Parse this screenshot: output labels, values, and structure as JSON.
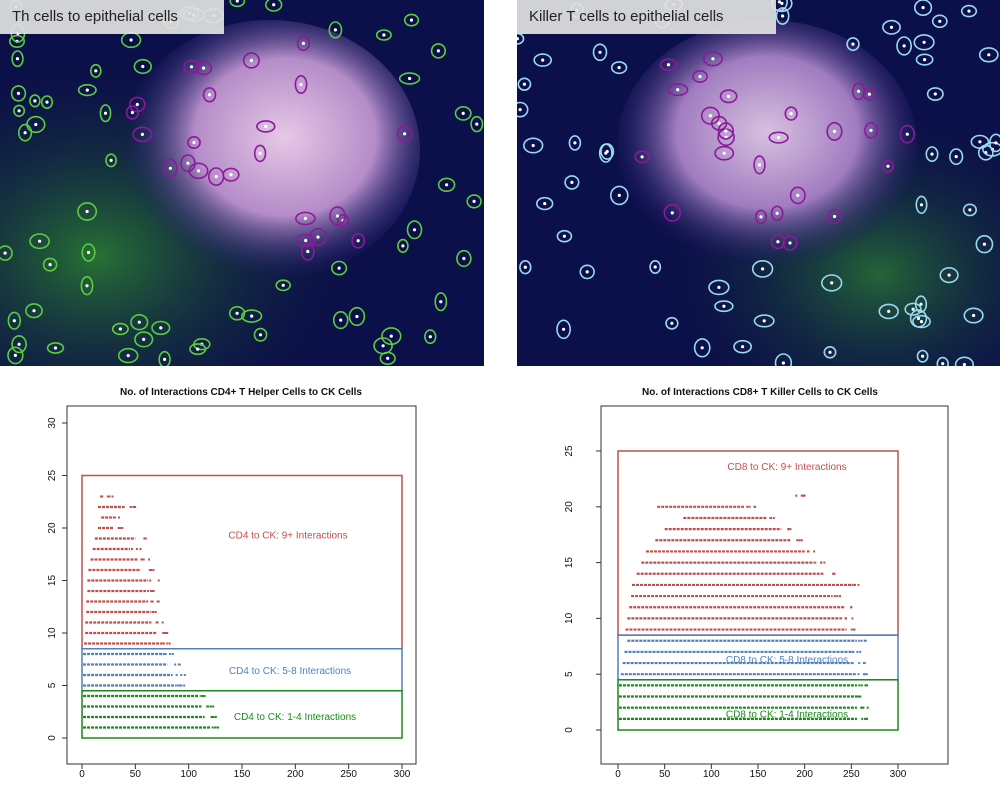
{
  "images": {
    "left_caption": "Th cells to epithelial cells",
    "right_caption": "Killer T cells to epithelial cells"
  },
  "colors": {
    "high": "#c0504d",
    "mid": "#4f81bd",
    "low": "#1a8a1a"
  },
  "chart_data": [
    {
      "type": "scatter",
      "title": "No. of Interactions CD4+ T Helper Cells to CK Cells",
      "xlabel": "",
      "ylabel": "",
      "xlim": [
        0,
        300
      ],
      "ylim": [
        0,
        30
      ],
      "x_ticks": [
        "0",
        "50",
        "100",
        "150",
        "200",
        "250",
        "300"
      ],
      "y_ticks": [
        "0",
        "5",
        "10",
        "15",
        "20",
        "25",
        "30"
      ],
      "gates": [
        {
          "label": "CD4 to CK: 9+ Interactions",
          "x_range": [
            0,
            300
          ],
          "y_range": [
            8.5,
            25
          ],
          "color": "red"
        },
        {
          "label": "CD4 to CK: 5-8 Interactions",
          "x_range": [
            0,
            300
          ],
          "y_range": [
            4.5,
            8.5
          ],
          "color": "blue"
        },
        {
          "label": "CD4 to CK: 1-4 Interactions",
          "x_range": [
            0,
            300
          ],
          "y_range": [
            0,
            4.5
          ],
          "color": "green"
        }
      ],
      "series": [
        {
          "name": "1-4 Interactions",
          "rows": [
            {
              "y": 1,
              "x_range": [
                1,
                120
              ]
            },
            {
              "y": 2,
              "x_range": [
                1,
                115
              ]
            },
            {
              "y": 3,
              "x_range": [
                1,
                112
              ]
            },
            {
              "y": 4,
              "x_range": [
                1,
                110
              ]
            }
          ]
        },
        {
          "name": "5-8 Interactions",
          "rows": [
            {
              "y": 5,
              "x_range": [
                1,
                88
              ]
            },
            {
              "y": 6,
              "x_range": [
                1,
                85
              ]
            },
            {
              "y": 7,
              "x_range": [
                1,
                80
              ]
            },
            {
              "y": 8,
              "x_range": [
                1,
                75
              ]
            }
          ]
        },
        {
          "name": "9+ Interactions",
          "rows": [
            {
              "y": 9,
              "x_range": [
                2,
                75
              ]
            },
            {
              "y": 10,
              "x_range": [
                3,
                70
              ]
            },
            {
              "y": 11,
              "x_range": [
                3,
                65
              ]
            },
            {
              "y": 12,
              "x_range": [
                4,
                65
              ]
            },
            {
              "y": 13,
              "x_range": [
                4,
                62
              ]
            },
            {
              "y": 14,
              "x_range": [
                5,
                60
              ]
            },
            {
              "y": 15,
              "x_range": [
                5,
                62
              ]
            },
            {
              "y": 16,
              "x_range": [
                6,
                55
              ]
            },
            {
              "y": 17,
              "x_range": [
                8,
                52
              ]
            },
            {
              "y": 18,
              "x_range": [
                10,
                45
              ]
            },
            {
              "y": 19,
              "x_range": [
                12,
                50
              ]
            },
            {
              "y": 20,
              "x_range": [
                15,
                30
              ]
            },
            {
              "y": 21,
              "x_range": [
                18,
                28
              ]
            },
            {
              "y": 22,
              "x_range": [
                15,
                40
              ]
            },
            {
              "y": 23,
              "x_range": [
                17,
                20
              ]
            }
          ]
        }
      ]
    },
    {
      "type": "scatter",
      "title": "No. of Interactions CD8+ T Killer Cells to CK Cells",
      "xlabel": "",
      "ylabel": "",
      "xlim": [
        0,
        300
      ],
      "ylim": [
        0,
        25
      ],
      "x_ticks": [
        "0",
        "50",
        "100",
        "150",
        "200",
        "250",
        "300"
      ],
      "y_ticks": [
        "0",
        "5",
        "10",
        "15",
        "20",
        "25"
      ],
      "gates": [
        {
          "label": "CD8 to CK: 9+ Interactions",
          "x_range": [
            0,
            300
          ],
          "y_range": [
            8.5,
            25
          ],
          "color": "red"
        },
        {
          "label": "CD8 to CK: 5-8 Interactions",
          "x_range": [
            0,
            300
          ],
          "y_range": [
            4.5,
            8.5
          ],
          "color": "blue"
        },
        {
          "label": "CD8 to CK: 1-4 Interactions",
          "x_range": [
            0,
            300
          ],
          "y_range": [
            0,
            4.5
          ],
          "color": "green"
        }
      ],
      "series": [
        {
          "name": "1-4 Interactions",
          "rows": [
            {
              "y": 1,
              "x_range": [
                1,
                256
              ]
            },
            {
              "y": 2,
              "x_range": [
                1,
                256
              ]
            },
            {
              "y": 3,
              "x_range": [
                1,
                256
              ]
            },
            {
              "y": 4,
              "x_range": [
                1,
                256
              ]
            }
          ]
        },
        {
          "name": "5-8 Interactions",
          "rows": [
            {
              "y": 5,
              "x_range": [
                3,
                255
              ]
            },
            {
              "y": 6,
              "x_range": [
                5,
                253
              ]
            },
            {
              "y": 7,
              "x_range": [
                7,
                250
              ]
            },
            {
              "y": 8,
              "x_range": [
                10,
                256
              ]
            }
          ]
        },
        {
          "name": "9+ Interactions",
          "rows": [
            {
              "y": 9,
              "x_range": [
                8,
                245
              ]
            },
            {
              "y": 10,
              "x_range": [
                10,
                240
              ]
            },
            {
              "y": 11,
              "x_range": [
                12,
                238
              ]
            },
            {
              "y": 12,
              "x_range": [
                14,
                230
              ]
            },
            {
              "y": 13,
              "x_range": [
                15,
                250
              ]
            },
            {
              "y": 14,
              "x_range": [
                20,
                220
              ]
            },
            {
              "y": 15,
              "x_range": [
                25,
                210
              ]
            },
            {
              "y": 16,
              "x_range": [
                30,
                200
              ]
            },
            {
              "y": 17,
              "x_range": [
                40,
                185
              ]
            },
            {
              "y": 18,
              "x_range": [
                50,
                175
              ]
            },
            {
              "y": 19,
              "x_range": [
                70,
                160
              ]
            },
            {
              "y": 20,
              "x_range": [
                42,
                135
              ]
            },
            {
              "y": 21,
              "x_range": [
                190,
                192
              ]
            }
          ]
        }
      ]
    }
  ]
}
